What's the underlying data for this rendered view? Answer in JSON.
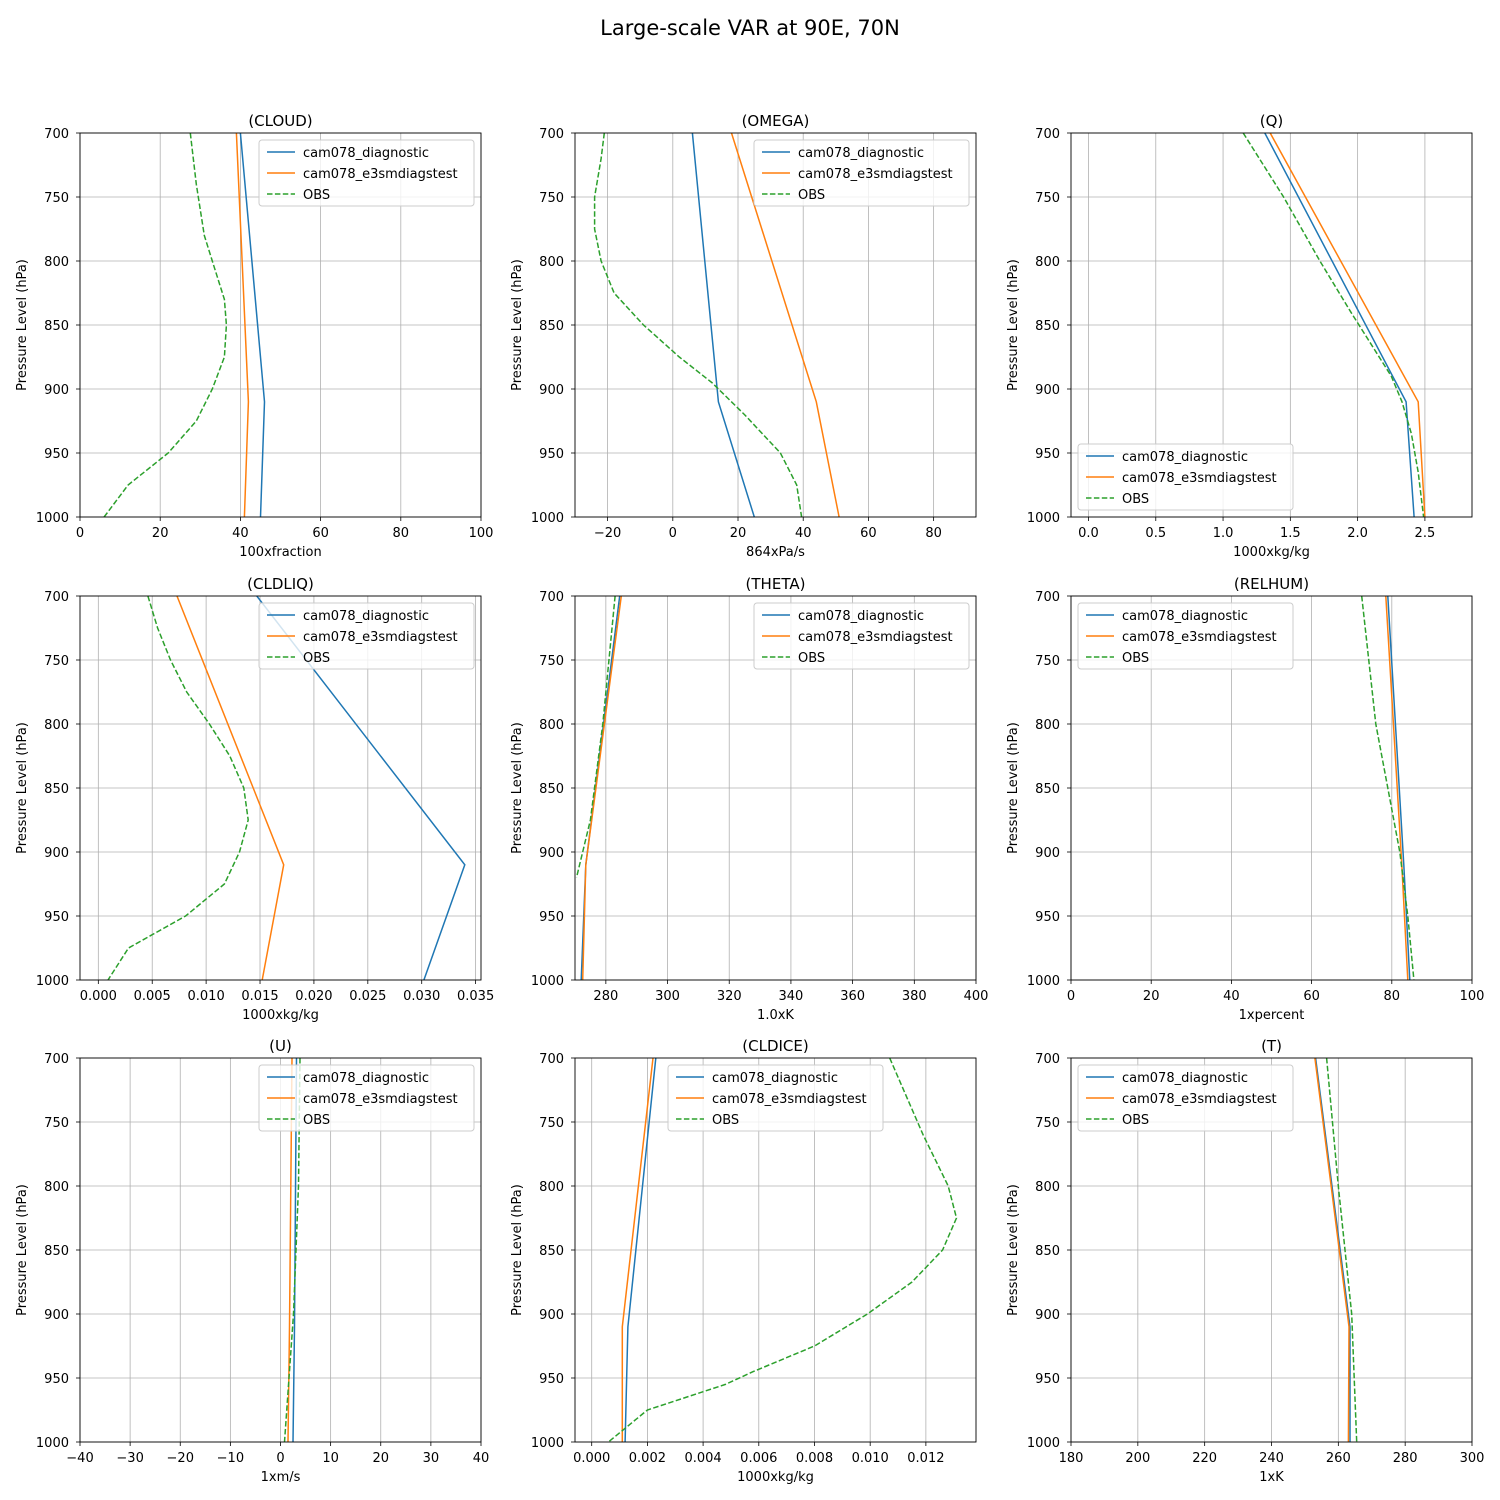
{
  "title": "Large-scale VAR at 90E, 70N",
  "ylabel": "Pressure Level (hPa)",
  "colors": {
    "cam078_diagnostic": "#1f77b4",
    "cam078_e3smdiagstest": "#ff7f0e",
    "OBS": "#2ca02c"
  },
  "levels": [
    700,
    750,
    800,
    850,
    875,
    900,
    910,
    925,
    950,
    975,
    1000
  ],
  "chart_data": [
    {
      "type": "line",
      "title": "(CLOUD)",
      "xlabel": "100xfraction",
      "xlim": [
        0,
        100
      ],
      "ylim": [
        1000,
        700
      ],
      "xticks": [
        0,
        20,
        40,
        60,
        80,
        100
      ],
      "xticklabels": [
        "0",
        "20",
        "40",
        "60",
        "80",
        "100"
      ],
      "yticks": [
        700,
        750,
        800,
        850,
        900,
        950,
        1000
      ],
      "legend_loc": "top-right",
      "series": [
        {
          "name": "cam078_diagnostic",
          "style": "solid",
          "x": [
            40,
            46,
            45
          ],
          "y": [
            700,
            910,
            1000
          ]
        },
        {
          "name": "cam078_e3smdiagstest",
          "style": "solid",
          "x": [
            39,
            42,
            41
          ],
          "y": [
            700,
            910,
            1000
          ]
        },
        {
          "name": "OBS",
          "style": "dashed",
          "x": [
            27.5,
            29,
            31,
            33,
            36,
            36.5,
            36,
            33,
            29,
            22,
            12,
            6
          ],
          "y": [
            700,
            740,
            780,
            800,
            830,
            850,
            875,
            900,
            925,
            950,
            975,
            1000
          ]
        }
      ]
    },
    {
      "type": "line",
      "title": "(OMEGA)",
      "xlabel": "864xPa/s",
      "xlim": [
        -30,
        93
      ],
      "ylim": [
        1000,
        700
      ],
      "xticks": [
        -20,
        0,
        20,
        40,
        60,
        80
      ],
      "xticklabels": [
        "−20",
        "0",
        "20",
        "40",
        "60",
        "80"
      ],
      "yticks": [
        700,
        750,
        800,
        850,
        900,
        950,
        1000
      ],
      "legend_loc": "top-right",
      "series": [
        {
          "name": "cam078_diagnostic",
          "style": "solid",
          "x": [
            6,
            14,
            25
          ],
          "y": [
            700,
            910,
            1000
          ]
        },
        {
          "name": "cam078_e3smdiagstest",
          "style": "solid",
          "x": [
            18,
            44,
            51
          ],
          "y": [
            700,
            910,
            1000
          ]
        },
        {
          "name": "OBS",
          "style": "dashed",
          "x": [
            -21,
            -22,
            -24,
            -24,
            -22,
            -18,
            -9,
            2,
            12,
            22,
            33,
            38,
            39.5
          ],
          "y": [
            700,
            720,
            750,
            775,
            800,
            825,
            850,
            875,
            895,
            920,
            950,
            975,
            1000
          ]
        }
      ]
    },
    {
      "type": "line",
      "title": "(Q)",
      "xlabel": "1000xkg/kg",
      "xlim": [
        -0.13,
        2.85
      ],
      "ylim": [
        1000,
        700
      ],
      "xticks": [
        0.0,
        0.5,
        1.0,
        1.5,
        2.0,
        2.5
      ],
      "xticklabels": [
        "0.0",
        "0.5",
        "1.0",
        "1.5",
        "2.0",
        "2.5"
      ],
      "yticks": [
        700,
        750,
        800,
        850,
        900,
        950,
        1000
      ],
      "legend_loc": "bottom-left",
      "series": [
        {
          "name": "cam078_diagnostic",
          "style": "solid",
          "x": [
            1.31,
            2.36,
            2.42
          ],
          "y": [
            700,
            910,
            1000
          ]
        },
        {
          "name": "cam078_e3smdiagstest",
          "style": "solid",
          "x": [
            1.35,
            2.45,
            2.5
          ],
          "y": [
            700,
            910,
            1000
          ]
        },
        {
          "name": "OBS",
          "style": "dashed",
          "x": [
            1.15,
            1.45,
            1.72,
            1.95,
            2.1,
            2.25,
            2.33,
            2.4,
            2.45,
            2.49
          ],
          "y": [
            700,
            750,
            800,
            840,
            865,
            890,
            910,
            935,
            965,
            1000
          ]
        }
      ]
    },
    {
      "type": "line",
      "title": "(CLDLIQ)",
      "xlabel": "1000xkg/kg",
      "xlim": [
        -0.0017,
        0.0355
      ],
      "ylim": [
        1000,
        700
      ],
      "xticks": [
        0.0,
        0.005,
        0.01,
        0.015,
        0.02,
        0.025,
        0.03,
        0.035
      ],
      "xticklabels": [
        "0.000",
        "0.005",
        "0.010",
        "0.015",
        "0.020",
        "0.025",
        "0.030",
        "0.035"
      ],
      "yticks": [
        700,
        750,
        800,
        850,
        900,
        950,
        1000
      ],
      "legend_loc": "top-right",
      "series": [
        {
          "name": "cam078_diagnostic",
          "style": "solid",
          "x": [
            0.0147,
            0.034,
            0.0302
          ],
          "y": [
            700,
            910,
            1000
          ]
        },
        {
          "name": "cam078_e3smdiagstest",
          "style": "solid",
          "x": [
            0.0073,
            0.0172,
            0.0152
          ],
          "y": [
            700,
            910,
            1000
          ]
        },
        {
          "name": "OBS",
          "style": "dashed",
          "x": [
            0.0046,
            0.0055,
            0.0067,
            0.0082,
            0.0103,
            0.0122,
            0.0135,
            0.0139,
            0.0131,
            0.0117,
            0.0081,
            0.0028,
            0.0009
          ],
          "y": [
            700,
            725,
            750,
            775,
            800,
            825,
            850,
            875,
            900,
            925,
            950,
            975,
            1000
          ]
        }
      ]
    },
    {
      "type": "line",
      "title": "(THETA)",
      "xlabel": "1.0xK",
      "xlim": [
        270,
        400
      ],
      "ylim": [
        1000,
        700
      ],
      "xticks": [
        280,
        300,
        320,
        340,
        360,
        380,
        400
      ],
      "xticklabels": [
        "280",
        "300",
        "320",
        "340",
        "360",
        "380",
        "400"
      ],
      "yticks": [
        700,
        750,
        800,
        850,
        900,
        950,
        1000
      ],
      "legend_loc": "top-right",
      "series": [
        {
          "name": "cam078_diagnostic",
          "style": "solid",
          "x": [
            284.5,
            273.5,
            272
          ],
          "y": [
            700,
            910,
            1000
          ]
        },
        {
          "name": "cam078_e3smdiagstest",
          "style": "solid",
          "x": [
            285,
            273.5,
            272.5
          ],
          "y": [
            700,
            910,
            1000
          ]
        },
        {
          "name": "OBS",
          "style": "dashed",
          "x": [
            283,
            279,
            275,
            270.5
          ],
          "y": [
            700,
            800,
            875,
            920
          ]
        }
      ]
    },
    {
      "type": "line",
      "title": "(RELHUM)",
      "xlabel": "1xpercent",
      "xlim": [
        0,
        100
      ],
      "ylim": [
        1000,
        700
      ],
      "xticks": [
        0,
        20,
        40,
        60,
        80,
        100
      ],
      "xticklabels": [
        "0",
        "20",
        "40",
        "60",
        "80",
        "100"
      ],
      "yticks": [
        700,
        750,
        800,
        850,
        900,
        950,
        1000
      ],
      "legend_loc": "top-left",
      "series": [
        {
          "name": "cam078_diagnostic",
          "style": "solid",
          "x": [
            79,
            83,
            84.5
          ],
          "y": [
            700,
            910,
            1000
          ]
        },
        {
          "name": "cam078_e3smdiagstest",
          "style": "solid",
          "x": [
            78.5,
            82.5,
            84
          ],
          "y": [
            700,
            910,
            1000
          ]
        },
        {
          "name": "OBS",
          "style": "dashed",
          "x": [
            72.5,
            76,
            79,
            82,
            84,
            85.5
          ],
          "y": [
            700,
            800,
            850,
            900,
            950,
            1000
          ]
        }
      ]
    },
    {
      "type": "line",
      "title": "(U)",
      "xlabel": "1xm/s",
      "xlim": [
        -40,
        40
      ],
      "ylim": [
        1000,
        700
      ],
      "xticks": [
        -40,
        -30,
        -20,
        -10,
        0,
        10,
        20,
        30,
        40
      ],
      "xticklabels": [
        "−40",
        "−30",
        "−20",
        "−10",
        "0",
        "10",
        "20",
        "30",
        "40"
      ],
      "yticks": [
        700,
        750,
        800,
        850,
        900,
        950,
        1000
      ],
      "legend_loc": "top-right",
      "series": [
        {
          "name": "cam078_diagnostic",
          "style": "solid",
          "x": [
            3.2,
            2.8,
            2.5
          ],
          "y": [
            700,
            910,
            1000
          ]
        },
        {
          "name": "cam078_e3smdiagstest",
          "style": "solid",
          "x": [
            2.3,
            1.8,
            1.5
          ],
          "y": [
            700,
            910,
            1000
          ]
        },
        {
          "name": "OBS",
          "style": "dashed",
          "x": [
            3.9,
            3.6,
            2.6,
            0.8
          ],
          "y": [
            700,
            800,
            900,
            1000
          ]
        }
      ]
    },
    {
      "type": "line",
      "title": "(CLDICE)",
      "xlabel": "1000xkg/kg",
      "xlim": [
        -0.0006,
        0.0138
      ],
      "ylim": [
        1000,
        700
      ],
      "xticks": [
        0.0,
        0.002,
        0.004,
        0.006,
        0.008,
        0.01,
        0.012
      ],
      "xticklabels": [
        "0.000",
        "0.002",
        "0.004",
        "0.006",
        "0.008",
        "0.010",
        "0.012"
      ],
      "yticks": [
        700,
        750,
        800,
        850,
        900,
        950,
        1000
      ],
      "legend_loc": "top-center",
      "series": [
        {
          "name": "cam078_diagnostic",
          "style": "solid",
          "x": [
            0.0023,
            0.0013,
            0.0012
          ],
          "y": [
            700,
            910,
            1000
          ]
        },
        {
          "name": "cam078_e3smdiagstest",
          "style": "solid",
          "x": [
            0.0022,
            0.0011,
            0.0011
          ],
          "y": [
            700,
            910,
            1000
          ]
        },
        {
          "name": "OBS",
          "style": "dashed",
          "x": [
            0.0107,
            0.0119,
            0.0128,
            0.0131,
            0.0126,
            0.0115,
            0.0099,
            0.008,
            0.0058,
            0.0048,
            0.002,
            0.0006
          ],
          "y": [
            700,
            760,
            800,
            825,
            850,
            875,
            900,
            925,
            945,
            955,
            975,
            1000
          ]
        }
      ]
    },
    {
      "type": "line",
      "title": "(T)",
      "xlabel": "1xK",
      "xlim": [
        180,
        300
      ],
      "ylim": [
        1000,
        700
      ],
      "xticks": [
        180,
        200,
        220,
        240,
        260,
        280,
        300
      ],
      "xticklabels": [
        "180",
        "200",
        "220",
        "240",
        "260",
        "280",
        "300"
      ],
      "yticks": [
        700,
        750,
        800,
        850,
        900,
        950,
        1000
      ],
      "legend_loc": "top-left",
      "series": [
        {
          "name": "cam078_diagnostic",
          "style": "solid",
          "x": [
            253.2,
            263.5,
            263.5
          ],
          "y": [
            700,
            910,
            1000
          ]
        },
        {
          "name": "cam078_e3smdiagstest",
          "style": "solid",
          "x": [
            253,
            263.2,
            263
          ],
          "y": [
            700,
            910,
            1000
          ]
        },
        {
          "name": "OBS",
          "style": "dashed",
          "x": [
            256.5,
            260,
            262,
            264,
            265.5
          ],
          "y": [
            700,
            800,
            850,
            900,
            1000
          ]
        }
      ]
    }
  ]
}
